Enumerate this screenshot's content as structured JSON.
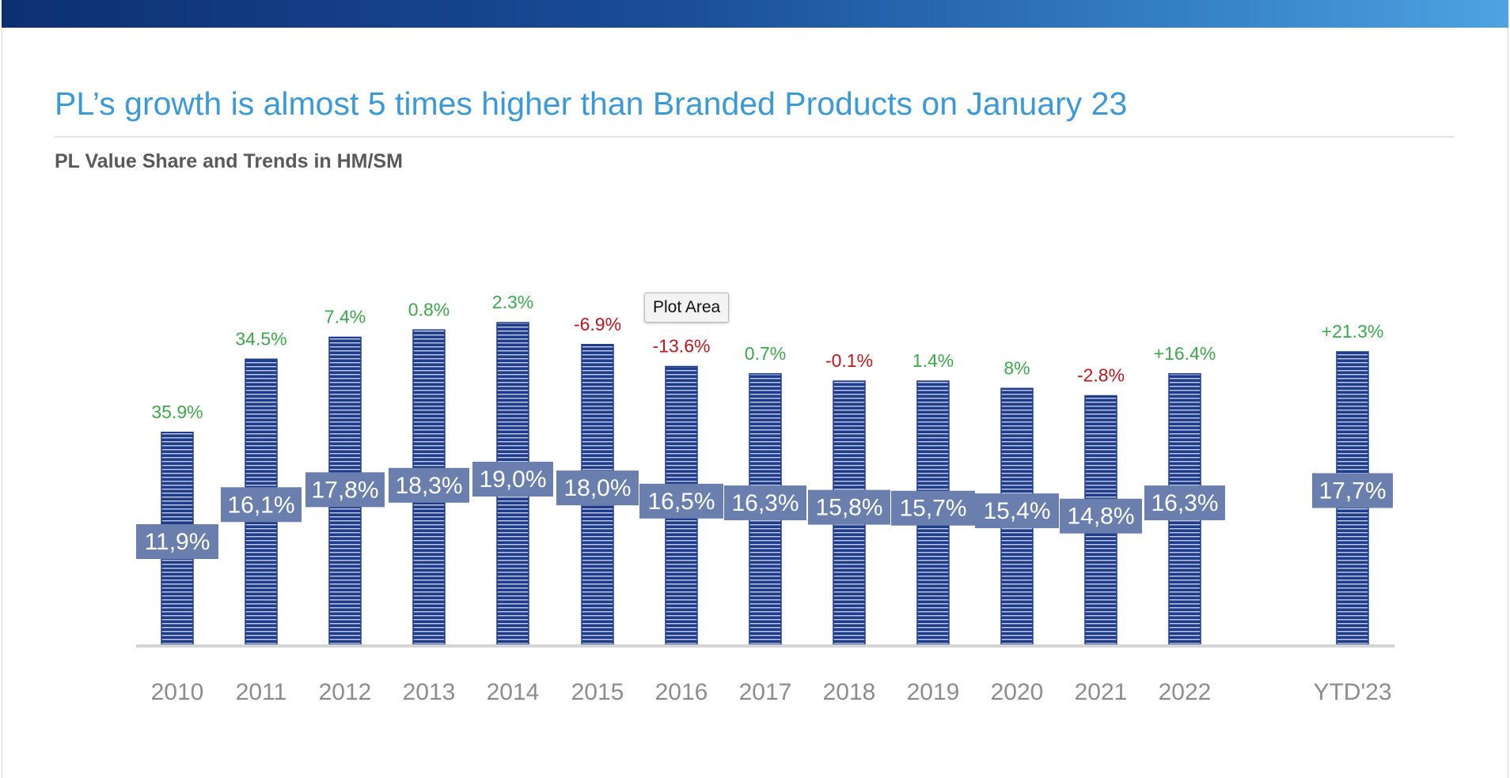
{
  "slide": {
    "title": "PL’s growth is almost 5 times higher than Branded Products on January 23",
    "subtitle": "PL Value Share and Trends in HM/SM"
  },
  "tooltip": {
    "text": "Plot Area"
  },
  "colors": {
    "bar": "#1f3d8f",
    "bar_stripe": "#ffffff",
    "share_label_bg": "#6a7fae",
    "growth_positive": "#3aaa48",
    "growth_negative": "#c0161b",
    "axis_label": "#8c8c8c",
    "title": "#3a9ad9"
  },
  "chart_data": {
    "type": "bar",
    "title": "PL Value Share and Trends in HM/SM",
    "xlabel": "",
    "ylabel": "",
    "grid": false,
    "legend": "none",
    "categories": [
      "2010",
      "2011",
      "2012",
      "2013",
      "2014",
      "2015",
      "2016",
      "2017",
      "2018",
      "2019",
      "2020",
      "2021",
      "2022",
      "YTD'23"
    ],
    "series": [
      {
        "values": [
          2.9,
          3.9,
          4.2,
          4.3,
          4.4,
          4.1,
          3.8,
          3.7,
          3.6,
          3.6,
          3.5,
          3.4,
          3.7,
          4.0
        ]
      }
    ],
    "share_labels": [
      "11,9%",
      "16,1%",
      "17,8%",
      "18,3%",
      "19,0%",
      "18,0%",
      "16,5%",
      "16,3%",
      "15,8%",
      "15,7%",
      "15,4%",
      "14,8%",
      "16,3%",
      "17,7%"
    ],
    "share_values": [
      11.9,
      16.1,
      17.8,
      18.3,
      19.0,
      18.0,
      16.5,
      16.3,
      15.8,
      15.7,
      15.4,
      14.8,
      16.3,
      17.7
    ],
    "growth_labels": [
      "35.9%",
      "34.5%",
      "7.4%",
      "0.8%",
      "2.3%",
      "-6.9%",
      "-13.6%",
      "0.7%",
      "-0.1%",
      "1.4%",
      "8%",
      "-2.8%",
      "+16.4%",
      "+21.3%"
    ],
    "growth_sign": [
      "pos",
      "pos",
      "pos",
      "pos",
      "pos",
      "neg",
      "neg",
      "pos",
      "neg",
      "pos",
      "pos",
      "neg",
      "pos",
      "pos"
    ]
  }
}
